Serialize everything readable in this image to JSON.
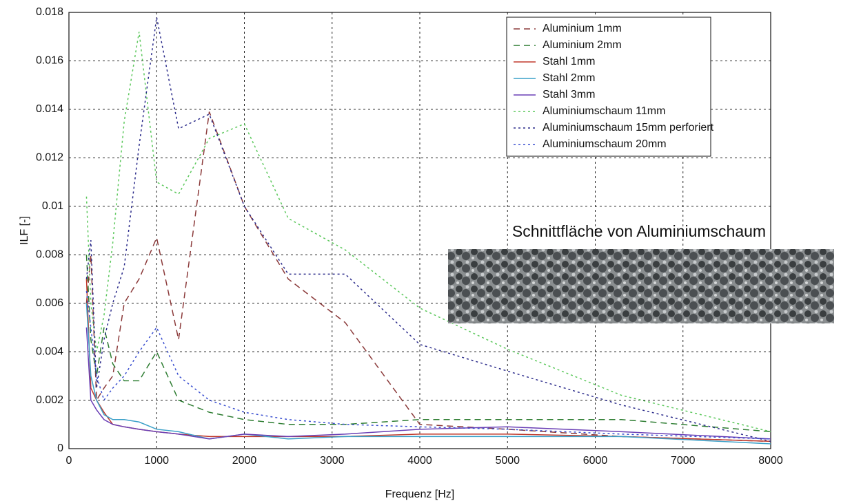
{
  "chart_data": {
    "type": "line",
    "xlabel": "Frequenz [Hz]",
    "ylabel": "ILF [-]",
    "x": [
      200,
      250,
      315,
      400,
      500,
      630,
      800,
      1000,
      1250,
      1600,
      2000,
      2500,
      3150,
      4000,
      5000,
      6300,
      8000
    ],
    "series": [
      {
        "name": "Aluminium 1mm",
        "color": "#8b3a3a",
        "dash": "dashed",
        "values": [
          0.006,
          0.008,
          0.002,
          0.0025,
          0.003,
          0.006,
          0.007,
          0.0087,
          0.0045,
          0.0139,
          0.01,
          0.007,
          0.0052,
          0.001,
          0.0008,
          0.0005,
          0.0003
        ]
      },
      {
        "name": "Aluminium 2mm",
        "color": "#2e7d32",
        "dash": "dashed",
        "values": [
          0.008,
          0.0045,
          0.003,
          0.005,
          0.0035,
          0.0028,
          0.0028,
          0.004,
          0.002,
          0.0015,
          0.0012,
          0.001,
          0.001,
          0.0012,
          0.0012,
          0.0012,
          0.0007
        ]
      },
      {
        "name": "Stahl 1mm",
        "color": "#c0392b",
        "dash": "solid",
        "values": [
          0.007,
          0.0025,
          0.002,
          0.0015,
          0.001,
          0.0009,
          0.0008,
          0.0007,
          0.0006,
          0.0005,
          0.0005,
          0.0005,
          0.0005,
          0.0006,
          0.0006,
          0.0005,
          0.0003
        ]
      },
      {
        "name": "Stahl 2mm",
        "color": "#3aa0c8",
        "dash": "solid",
        "values": [
          0.006,
          0.003,
          0.002,
          0.0014,
          0.0012,
          0.0012,
          0.0011,
          0.0008,
          0.0007,
          0.0004,
          0.0006,
          0.0004,
          0.0005,
          0.0005,
          0.0005,
          0.0005,
          0.0002
        ]
      },
      {
        "name": "Stahl 3mm",
        "color": "#6a3fb5",
        "dash": "solid",
        "values": [
          0.005,
          0.002,
          0.0016,
          0.0012,
          0.001,
          0.0009,
          0.0008,
          0.0007,
          0.0006,
          0.0004,
          0.0006,
          0.0005,
          0.0006,
          0.0008,
          0.0009,
          0.0007,
          0.0004
        ]
      },
      {
        "name": "Aluminiumschaum 11mm",
        "color": "#5cc85c",
        "dash": "dotted",
        "values": [
          0.0104,
          0.006,
          0.004,
          0.0055,
          0.0085,
          0.0135,
          0.0172,
          0.011,
          0.0105,
          0.0128,
          0.0134,
          0.0095,
          0.0082,
          0.0058,
          0.0041,
          0.0022,
          0.0007
        ]
      },
      {
        "name": "Aluminiumschaum 15mm perforiert",
        "color": "#2a2a8a",
        "dash": "dotted",
        "values": [
          0.007,
          0.0086,
          0.0025,
          0.0045,
          0.006,
          0.0075,
          0.0125,
          0.0178,
          0.0132,
          0.0138,
          0.01,
          0.0072,
          0.0072,
          0.0043,
          0.0032,
          0.0018,
          0.0003
        ]
      },
      {
        "name": "Aluminiumschaum 20mm",
        "color": "#3a4fd0",
        "dash": "dotted",
        "values": [
          0.0065,
          0.005,
          0.003,
          0.002,
          0.0025,
          0.003,
          0.004,
          0.005,
          0.003,
          0.002,
          0.0015,
          0.0012,
          0.001,
          0.0009,
          0.0008,
          0.0006,
          0.0004
        ]
      }
    ],
    "xlim": [
      0,
      8000
    ],
    "xticks": [
      0,
      1000,
      2000,
      3000,
      4000,
      5000,
      6000,
      7000,
      8000
    ],
    "ylim": [
      0,
      0.018
    ],
    "yticks": [
      0,
      0.002,
      0.004,
      0.006,
      0.008,
      0.01,
      0.012,
      0.014,
      0.016,
      0.018
    ],
    "grid": true,
    "legend": "upper right",
    "annotation": "Schnittfläche von Aluminiumschaum"
  }
}
